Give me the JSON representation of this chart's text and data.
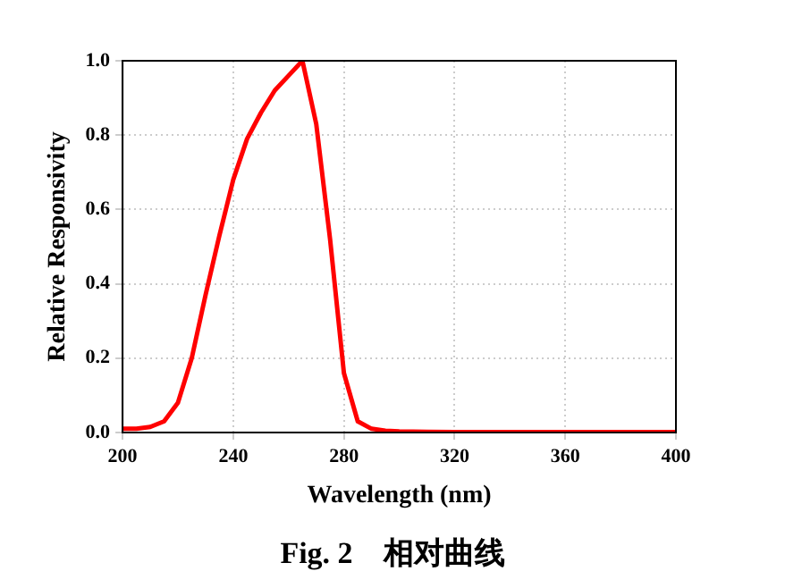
{
  "chart_data": {
    "type": "line",
    "xlabel": "Wavelength (nm)",
    "ylabel": "Relative Responsivity",
    "x": [
      200,
      205,
      210,
      215,
      220,
      225,
      230,
      235,
      240,
      245,
      250,
      255,
      260,
      265,
      270,
      275,
      280,
      285,
      290,
      295,
      300,
      310,
      320,
      340,
      360,
      380,
      400
    ],
    "series": [
      {
        "color": "#ff0000",
        "values": [
          0.01,
          0.01,
          0.015,
          0.03,
          0.08,
          0.2,
          0.37,
          0.53,
          0.68,
          0.79,
          0.86,
          0.92,
          0.96,
          1.0,
          0.83,
          0.52,
          0.16,
          0.03,
          0.01,
          0.005,
          0.003,
          0.002,
          0.001,
          0.001,
          0.001,
          0.001,
          0.001
        ]
      }
    ],
    "xlim": [
      200,
      400
    ],
    "xticks": [
      200,
      240,
      280,
      320,
      360,
      400
    ],
    "ylim": [
      0,
      1
    ],
    "yticks": [
      {
        "value": 0,
        "label": "0.0"
      },
      {
        "value": 0.2,
        "label": "0.2"
      },
      {
        "value": 0.4,
        "label": "0.4"
      },
      {
        "value": 0.6,
        "label": "0.6"
      },
      {
        "value": 0.8,
        "label": "0.8"
      },
      {
        "value": 1,
        "label": "1.0"
      }
    ],
    "grid": true,
    "legend": false,
    "marker": "none",
    "line_style": "solid",
    "annotations": [
      "Fig. 2    相对曲线"
    ]
  }
}
